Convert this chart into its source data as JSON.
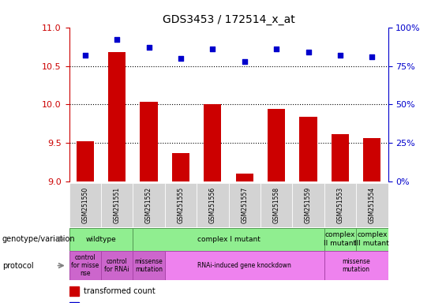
{
  "title": "GDS3453 / 172514_x_at",
  "samples": [
    "GSM251550",
    "GSM251551",
    "GSM251552",
    "GSM251555",
    "GSM251556",
    "GSM251557",
    "GSM251558",
    "GSM251559",
    "GSM251553",
    "GSM251554"
  ],
  "bar_values": [
    9.52,
    10.68,
    10.04,
    9.37,
    10.0,
    9.11,
    9.94,
    9.84,
    9.62,
    9.57
  ],
  "dot_values": [
    82,
    92,
    87,
    80,
    86,
    78,
    86,
    84,
    82,
    81
  ],
  "ylim_left": [
    9,
    11
  ],
  "ylim_right": [
    0,
    100
  ],
  "yticks_left": [
    9,
    9.5,
    10,
    10.5,
    11
  ],
  "yticks_right": [
    0,
    25,
    50,
    75,
    100
  ],
  "bar_color": "#cc0000",
  "dot_color": "#0000cc",
  "sample_bg_color": "#d3d3d3",
  "genotype_items": [
    {
      "cols": [
        0,
        1
      ],
      "color": "#90ee90",
      "label": "wildtype"
    },
    {
      "cols": [
        2,
        3,
        4,
        5,
        6,
        7
      ],
      "color": "#90ee90",
      "label": "complex I mutant"
    },
    {
      "cols": [
        8
      ],
      "color": "#90ee90",
      "label": "complex\nII mutant"
    },
    {
      "cols": [
        9
      ],
      "color": "#90ee90",
      "label": "complex\nIII mutant"
    }
  ],
  "protocol_items": [
    {
      "cols": [
        0
      ],
      "color": "#cc66cc",
      "label": "control\nfor misse\nnse"
    },
    {
      "cols": [
        1
      ],
      "color": "#cc66cc",
      "label": "control\nfor RNAi"
    },
    {
      "cols": [
        2
      ],
      "color": "#cc66cc",
      "label": "missense\nmutation"
    },
    {
      "cols": [
        3,
        4,
        5,
        6,
        7
      ],
      "color": "#ee82ee",
      "label": "RNAi-induced gene knockdown"
    },
    {
      "cols": [
        8,
        9
      ],
      "color": "#ee82ee",
      "label": "missense\nmutation"
    }
  ]
}
